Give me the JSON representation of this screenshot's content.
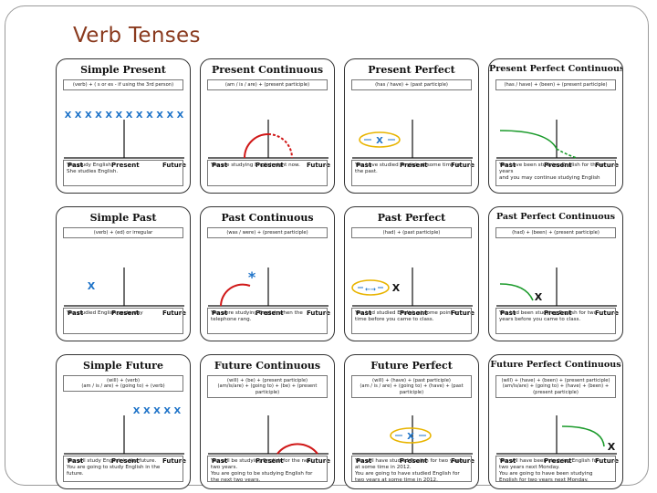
{
  "page": {
    "title": "Verb Tenses"
  },
  "labels": {
    "past": "Past",
    "present": "Present",
    "future": "Future"
  },
  "cards": [
    {
      "title": "Simple Present",
      "formula": [
        "(verb) + ( s or es - if using the 3rd person)"
      ],
      "example": [
        "You study English.",
        "She studies English."
      ],
      "diagram": "xs",
      "marks": "X X X X X X X X X X X X"
    },
    {
      "title": "Present Continuous",
      "formula": [
        "(am / is / are) + (present participle)"
      ],
      "example": [
        "You are studying English right now."
      ],
      "diagram": "arc-dashed"
    },
    {
      "title": "Present Perfect",
      "formula": [
        "(has / have) + (past participle)"
      ],
      "example": [
        "You have studied English at some time in",
        "the past."
      ],
      "diagram": "oval-x",
      "marks": "X"
    },
    {
      "title": "Present Perfect Continuous",
      "formula": [
        "(has / have) + (been) + (present participle)"
      ],
      "example": [
        "You have been studying English for three years",
        "and you may continue studying English"
      ],
      "diagram": "green-curve"
    },
    {
      "title": "Simple Past",
      "formula": [
        "(verb) + (ed) or irregular"
      ],
      "example": [
        "You studied English yesterday"
      ],
      "diagram": "single-x",
      "marks": "X"
    },
    {
      "title": "Past Continuous",
      "formula": [
        "(was / were) + (present participle)"
      ],
      "example": [
        "You were studying English when the",
        "telephone rang."
      ],
      "diagram": "arc-star",
      "marks": "*"
    },
    {
      "title": "Past Perfect",
      "formula": [
        "(had) + (past participle)"
      ],
      "example": [
        "You had studied English at some point in",
        "time before you came to class."
      ],
      "diagram": "oval-x2",
      "marks": "X"
    },
    {
      "title": "Past Perfect Continuous",
      "formula": [
        "(had) + (been) + (present participle)"
      ],
      "example": [
        "You had been studying English for two",
        "years before you came to class."
      ],
      "diagram": "green-curve-x",
      "marks": "X"
    },
    {
      "title": "Simple Future",
      "formula": [
        "(will) + (verb)",
        "(am / is / are) + (going to) + (verb)"
      ],
      "example": [
        "You will study English in the future.",
        "You are going to study English in the",
        "future."
      ],
      "diagram": "xs-future",
      "marks": "X X X X X"
    },
    {
      "title": "Future Continuous",
      "formula": [
        "(will) + (be) + (present participle)",
        "(am/is/are) + (going to) + (be) + (present participle)"
      ],
      "example": [
        "You will be studying English for the next",
        "two years.",
        "You are going to be studying English for",
        "the next two years."
      ],
      "diagram": "arc-future"
    },
    {
      "title": "Future Perfect",
      "formula": [
        "(will) + (have) + (past participle)",
        "(am / is / are) + (going to) + (have) + (past participle)"
      ],
      "example": [
        "You will have studied English for two years",
        "at some time in 2012.",
        "You are going to have studied English for",
        "two years at some time in 2012."
      ],
      "diagram": "oval-future",
      "marks": "X"
    },
    {
      "title": "Future Perfect Continuous",
      "formula": [
        "(will) + (have) + (been) + (present participle)",
        "(am/is/are) + (going to) + (have) + (been) + (present participle)"
      ],
      "example": [
        "You will have been studying English for",
        "two years next Monday.",
        "You are going to have been studying",
        "English for two years next Monday."
      ],
      "diagram": "green-curve-future",
      "marks": "X"
    }
  ]
}
